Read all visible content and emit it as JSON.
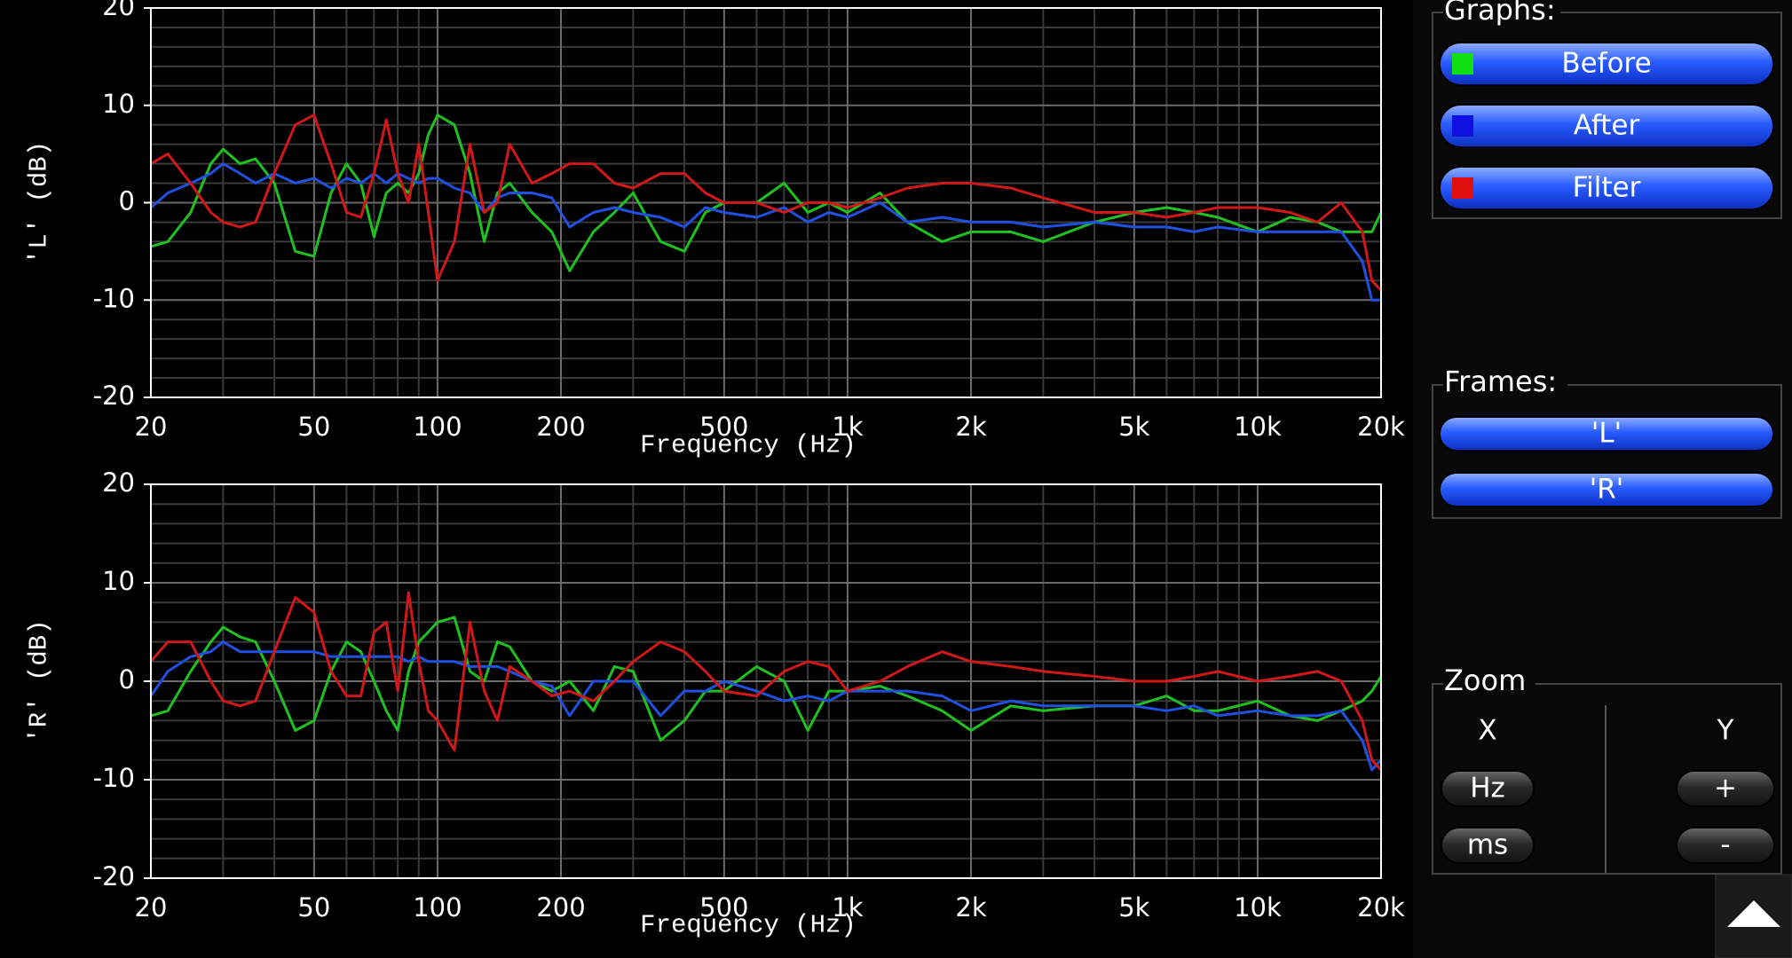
{
  "chart_data": [
    {
      "type": "line",
      "x_scale": "log",
      "grid": true,
      "x_label": "Frequency (Hz)",
      "y_label": "'L' (dB)",
      "xlim": [
        20,
        20000
      ],
      "ylim": [
        -20,
        20
      ],
      "xticks": [
        20,
        50,
        100,
        200,
        500,
        {
          "value": 1000,
          "label": "1k"
        },
        {
          "value": 2000,
          "label": "2k"
        },
        {
          "value": 5000,
          "label": "5k"
        },
        {
          "value": 10000,
          "label": "10k"
        },
        {
          "value": 20000,
          "label": "20k"
        }
      ],
      "x_minor_ticks": [
        30,
        40,
        60,
        70,
        80,
        90,
        300,
        400,
        600,
        700,
        800,
        900,
        3000,
        4000,
        6000,
        7000,
        8000,
        9000
      ],
      "yticks": [
        -20,
        -10,
        0,
        10,
        20
      ],
      "y_minor_ticks": [
        -18,
        -16,
        -14,
        -12,
        -8,
        -6,
        -4,
        -2,
        2,
        4,
        6,
        8,
        12,
        14,
        16,
        18
      ],
      "x": [
        20,
        22,
        25,
        28,
        30,
        33,
        36,
        40,
        45,
        50,
        55,
        60,
        65,
        70,
        75,
        80,
        85,
        90,
        95,
        100,
        110,
        120,
        130,
        140,
        150,
        170,
        190,
        210,
        240,
        270,
        300,
        350,
        400,
        450,
        500,
        600,
        700,
        800,
        900,
        1000,
        1200,
        1400,
        1700,
        2000,
        2500,
        3000,
        4000,
        5000,
        6000,
        7000,
        8000,
        10000,
        12000,
        14000,
        16000,
        18000,
        19000,
        20000
      ],
      "series": [
        {
          "color": "#20c020",
          "values": [
            -4.5,
            -4,
            -1,
            4,
            5.5,
            4,
            4.5,
            2,
            -5,
            -5.5,
            1,
            4,
            2,
            -3.5,
            1,
            2,
            1,
            3,
            7,
            9,
            8,
            3,
            -4,
            1,
            2,
            -1,
            -3,
            -7,
            -3,
            -1,
            1,
            -4,
            -5,
            -1,
            0,
            0,
            2,
            -1,
            0,
            -1,
            1,
            -2,
            -4,
            -3,
            -3,
            -4,
            -2,
            -1,
            -0.5,
            -1,
            -1.5,
            -3,
            -1.5,
            -2,
            -3,
            -3,
            -3,
            -1
          ]
        },
        {
          "color": "#2050e0",
          "values": [
            -0.5,
            1,
            2,
            3,
            4,
            3,
            2,
            3,
            2,
            2.5,
            1.5,
            2.5,
            2,
            3,
            2,
            3,
            2.5,
            2,
            2.5,
            2.5,
            1.5,
            1,
            -1,
            0.5,
            1,
            1,
            0.5,
            -2.5,
            -1,
            -0.5,
            -1,
            -1.5,
            -2.5,
            -0.5,
            -1,
            -1.5,
            -0.5,
            -2,
            -1,
            -1.5,
            0,
            -2,
            -1.5,
            -2,
            -2,
            -2.5,
            -2,
            -2.5,
            -2.5,
            -3,
            -2.5,
            -3,
            -3,
            -3,
            -3,
            -6,
            -10,
            -10
          ]
        },
        {
          "color": "#d01818",
          "values": [
            4,
            5,
            2,
            -1,
            -2,
            -2.5,
            -2,
            3,
            8,
            9,
            4,
            -1,
            -1.5,
            3,
            8.5,
            3,
            0,
            6,
            -1,
            -8,
            -4,
            6,
            -1,
            0,
            6,
            2,
            3,
            4,
            4,
            2,
            1.5,
            3,
            3,
            1,
            0,
            0,
            -1,
            0,
            0,
            -0.5,
            0.5,
            1.5,
            2,
            2,
            1.5,
            0.5,
            -1,
            -1,
            -1.5,
            -1,
            -0.5,
            -0.5,
            -1,
            -2,
            0,
            -3,
            -8,
            -9
          ]
        }
      ]
    },
    {
      "type": "line",
      "x_scale": "log",
      "grid": true,
      "x_label": "Frequency (Hz)",
      "y_label": "'R' (dB)",
      "xlim": [
        20,
        20000
      ],
      "ylim": [
        -20,
        20
      ],
      "xticks": [
        20,
        50,
        100,
        200,
        500,
        {
          "value": 1000,
          "label": "1k"
        },
        {
          "value": 2000,
          "label": "2k"
        },
        {
          "value": 5000,
          "label": "5k"
        },
        {
          "value": 10000,
          "label": "10k"
        },
        {
          "value": 20000,
          "label": "20k"
        }
      ],
      "x_minor_ticks": [
        30,
        40,
        60,
        70,
        80,
        90,
        300,
        400,
        600,
        700,
        800,
        900,
        3000,
        4000,
        6000,
        7000,
        8000,
        9000
      ],
      "yticks": [
        -20,
        -10,
        0,
        10,
        20
      ],
      "y_minor_ticks": [
        -18,
        -16,
        -14,
        -12,
        -8,
        -6,
        -4,
        -2,
        2,
        4,
        6,
        8,
        12,
        14,
        16,
        18
      ],
      "x": [
        20,
        22,
        25,
        28,
        30,
        33,
        36,
        40,
        45,
        50,
        55,
        60,
        65,
        70,
        75,
        80,
        85,
        90,
        95,
        100,
        110,
        120,
        130,
        140,
        150,
        170,
        190,
        210,
        240,
        270,
        300,
        350,
        400,
        450,
        500,
        600,
        700,
        800,
        900,
        1000,
        1200,
        1400,
        1700,
        2000,
        2500,
        3000,
        4000,
        5000,
        6000,
        7000,
        8000,
        10000,
        12000,
        14000,
        16000,
        18000,
        19000,
        20000
      ],
      "series": [
        {
          "color": "#20c020",
          "values": [
            -3.5,
            -3,
            1,
            4,
            5.5,
            4.5,
            4,
            0,
            -5,
            -4,
            1,
            4,
            3,
            0,
            -3,
            -5,
            1,
            4,
            5,
            6,
            6.5,
            1,
            0,
            4,
            3.5,
            0,
            -1,
            0,
            -3,
            1.5,
            1,
            -6,
            -4,
            -1,
            -1,
            1.5,
            0,
            -5,
            -1,
            -1,
            -0.5,
            -1.5,
            -3,
            -5,
            -2.5,
            -3,
            -2.5,
            -2.5,
            -1.5,
            -3,
            -3,
            -2,
            -3.5,
            -4,
            -3,
            -2,
            -1,
            0.5
          ]
        },
        {
          "color": "#2050e0",
          "values": [
            -1.5,
            1,
            2.5,
            3,
            4,
            3,
            3,
            3,
            3,
            3,
            2.5,
            2.5,
            2.5,
            2.5,
            2.5,
            2.5,
            2,
            2.5,
            2,
            2,
            2,
            1.5,
            1.5,
            1.5,
            1,
            0,
            -0.5,
            -3.5,
            0,
            0,
            0,
            -3.5,
            -1,
            -1,
            0,
            -1,
            -2,
            -1.5,
            -2,
            -1,
            -1,
            -1,
            -1.5,
            -3,
            -2,
            -2.5,
            -2.5,
            -2.5,
            -3,
            -2.5,
            -3.5,
            -3,
            -3.5,
            -3.5,
            -3,
            -6,
            -9,
            -8
          ]
        },
        {
          "color": "#d01818",
          "values": [
            2,
            4,
            4,
            0,
            -2,
            -2.5,
            -2,
            3,
            8.5,
            7,
            1,
            -1.5,
            -1.5,
            5,
            6,
            -1,
            9,
            2,
            -3,
            -4,
            -7,
            6,
            -1,
            -4,
            1.5,
            0,
            -1.5,
            -1,
            -2,
            0,
            2,
            4,
            3,
            1,
            -1,
            -1.5,
            1,
            2,
            1.5,
            -1,
            0,
            1.5,
            3,
            2,
            1.5,
            1,
            0.5,
            0,
            0,
            0.5,
            1,
            0,
            0.5,
            1,
            0,
            -4,
            -8,
            -9
          ]
        }
      ]
    }
  ],
  "panel": {
    "graphs": {
      "title": "Graphs:",
      "buttons": [
        {
          "label": "Before",
          "color": "#10e010"
        },
        {
          "label": "After",
          "color": "#1010e0"
        },
        {
          "label": "Filter",
          "color": "#e01010"
        }
      ]
    },
    "frames": {
      "title": "Frames:",
      "buttons": [
        "'L'",
        "'R'"
      ]
    },
    "zoom": {
      "title": "Zoom",
      "x_label": "X",
      "y_label": "Y",
      "x_buttons": [
        "Hz",
        "ms"
      ],
      "y_buttons": [
        "+",
        "-"
      ]
    }
  }
}
